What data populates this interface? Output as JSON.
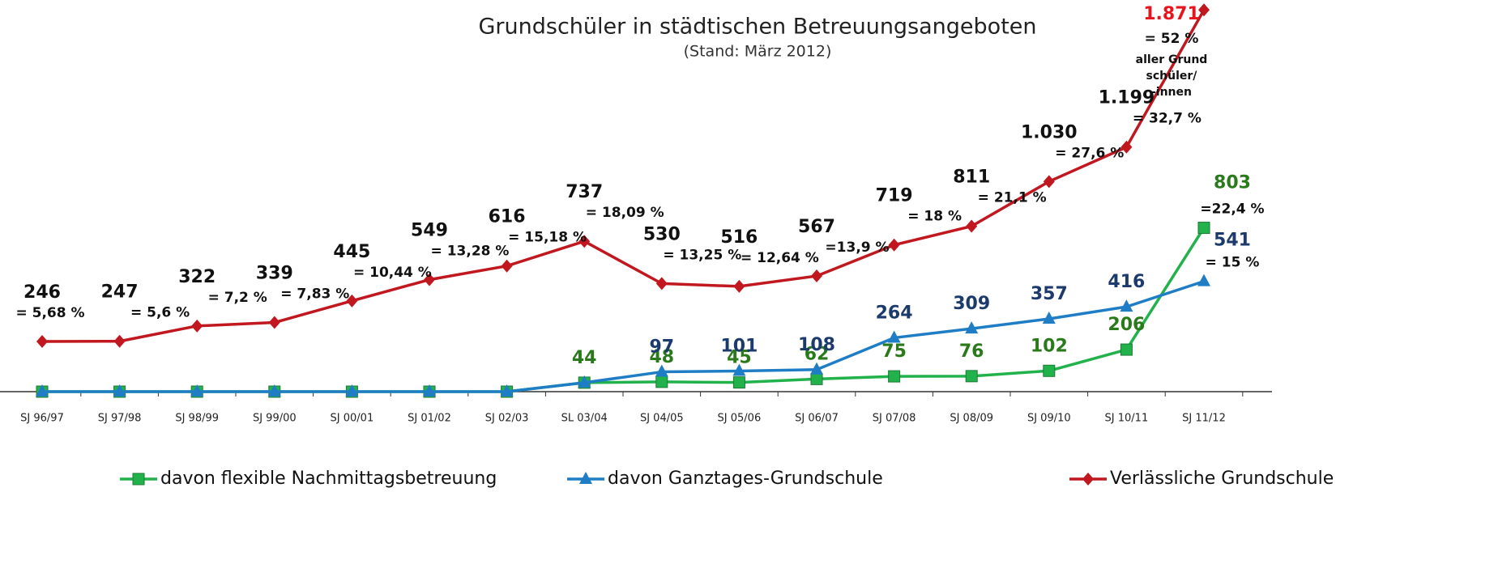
{
  "chart_data": {
    "type": "line",
    "title": "Grundschüler in städtischen Betreuungsangeboten",
    "subtitle": "(Stand: März 2012)",
    "categories": [
      "SJ 96/97",
      "SJ 97/98",
      "SJ 98/99",
      "SJ 99/00",
      "SJ 00/01",
      "SJ 01/02",
      "SJ 02/03",
      "SL 03/04",
      "SJ 04/05",
      "SJ 05/06",
      "SJ 06/07",
      "SJ 07/08",
      "SJ 08/09",
      "SJ 09/10",
      "SJ 10/11",
      "SJ 11/12"
    ],
    "ylim": [
      0,
      1900
    ],
    "legend": "bottom",
    "series": [
      {
        "name": "davon flexible Nachmittagsbetreuung",
        "color": "#22b24c",
        "marker": "square",
        "label_color": "#2a7a1c",
        "values": [
          0,
          0,
          0,
          0,
          0,
          0,
          0,
          44,
          48,
          45,
          62,
          75,
          76,
          102,
          206,
          803
        ],
        "value_labels": [
          null,
          null,
          null,
          null,
          null,
          null,
          null,
          "44",
          "48",
          "45",
          "62",
          "75",
          "76",
          "102",
          "206",
          "803"
        ],
        "percent_labels": [
          null,
          null,
          null,
          null,
          null,
          null,
          null,
          null,
          null,
          null,
          null,
          null,
          null,
          null,
          null,
          "=22,4 %"
        ]
      },
      {
        "name": "davon Ganztages-Grundschule",
        "color": "#1f7dc6",
        "marker": "triangle",
        "label_color": "#1c3a6b",
        "values": [
          0,
          0,
          0,
          0,
          0,
          0,
          0,
          44,
          97,
          101,
          108,
          264,
          309,
          357,
          416,
          541
        ],
        "value_labels": [
          null,
          null,
          null,
          null,
          null,
          null,
          null,
          null,
          "97",
          "101",
          "108",
          "264",
          "309",
          "357",
          "416",
          "541"
        ],
        "percent_labels": [
          null,
          null,
          null,
          null,
          null,
          null,
          null,
          null,
          null,
          null,
          null,
          null,
          null,
          null,
          null,
          "= 15 %"
        ]
      },
      {
        "name": "Verlässliche Grundschule",
        "color": "#c1171f",
        "marker": "diamond",
        "label_color": "#111111",
        "last_label_color": "#e8141b",
        "values": [
          246,
          247,
          322,
          339,
          445,
          549,
          616,
          737,
          530,
          516,
          567,
          719,
          811,
          1030,
          1199,
          1871
        ],
        "value_labels": [
          "246",
          "247",
          "322",
          "339",
          "445",
          "549",
          "616",
          "737",
          "530",
          "516",
          "567",
          "719",
          "811",
          "1.030",
          "1.199",
          "1.871"
        ],
        "percent_labels": [
          "= 5,68 %",
          "= 5,6 %",
          "= 7,2 %",
          "= 7,83 %",
          "= 10,44 %",
          "= 13,28 %",
          "= 15,18 %",
          "= 18,09 %",
          "= 13,25 %",
          "= 12,64 %",
          "=13,9 %",
          "= 18 %",
          "= 21,1 %",
          "= 27,6 %",
          "= 32,7 %",
          "= 52 %"
        ],
        "note": [
          "aller Grund",
          "schüler/",
          "-innen"
        ]
      }
    ]
  }
}
